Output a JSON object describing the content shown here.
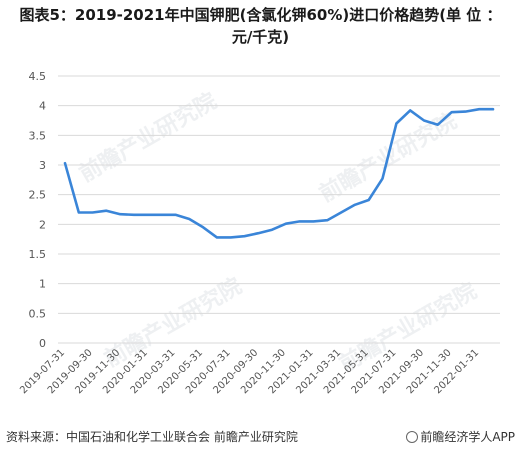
{
  "title_line1": "图表5：2019-2021年中国钾肥(含氯化钾60%)进口价格趋势(单 位 ：",
  "title_line2": "元/千克)",
  "footer": {
    "source": "资料来源：中国石油和化学工业联合会 前瞻产业研究院",
    "app": "前瞻经济学人APP"
  },
  "watermark": "前瞻产业研究院",
  "colors": {
    "line": "#3a85d8",
    "grid": "#d9d9d9",
    "axis_text": "#555555"
  },
  "chart_data": {
    "type": "line",
    "title": "图表5：2019-2021年中国钾肥(含氯化钾60%)进口价格趋势(单 位 ：元/千克)",
    "xlabel": "",
    "ylabel": "",
    "ylim": [
      0,
      4.5
    ],
    "yticks": [
      "0",
      "0.5",
      "1",
      "1.5",
      "2",
      "2.5",
      "3",
      "3.5",
      "4",
      "4.5"
    ],
    "grid": true,
    "x": [
      "2019-07-31",
      "2019-08-31",
      "2019-09-30",
      "2019-10-31",
      "2019-11-30",
      "2019-12-31",
      "2020-01-31",
      "2020-02-29",
      "2020-03-31",
      "2020-04-30",
      "2020-05-31",
      "2020-06-30",
      "2020-07-31",
      "2020-08-31",
      "2020-09-30",
      "2020-10-31",
      "2020-11-30",
      "2020-12-31",
      "2021-01-31",
      "2021-02-28",
      "2021-03-31",
      "2021-04-30",
      "2021-05-31",
      "2021-06-30",
      "2021-07-31",
      "2021-08-31",
      "2021-09-30",
      "2021-10-31",
      "2021-11-30",
      "2021-12-31",
      "2022-01-31",
      "2022-02-28"
    ],
    "xtick_labels": [
      "2019-07-31",
      "2019-09-30",
      "2019-11-30",
      "2020-01-31",
      "2020-03-31",
      "2020-05-31",
      "2020-07-31",
      "2020-09-30",
      "2020-11-30",
      "2021-01-31",
      "2021-03-31",
      "2021-05-31",
      "2021-07-31",
      "2021-09-30",
      "2021-11-30",
      "2022-01-31"
    ],
    "series": [
      {
        "name": "",
        "values": [
          3.03,
          2.2,
          2.2,
          2.23,
          2.17,
          2.16,
          2.16,
          2.16,
          2.16,
          2.09,
          1.95,
          1.78,
          1.78,
          1.8,
          1.85,
          1.91,
          2.01,
          2.05,
          2.05,
          2.07,
          2.2,
          2.33,
          2.41,
          2.77,
          3.7,
          3.92,
          3.75,
          3.68,
          3.89,
          3.9,
          3.94,
          3.94
        ]
      }
    ]
  }
}
